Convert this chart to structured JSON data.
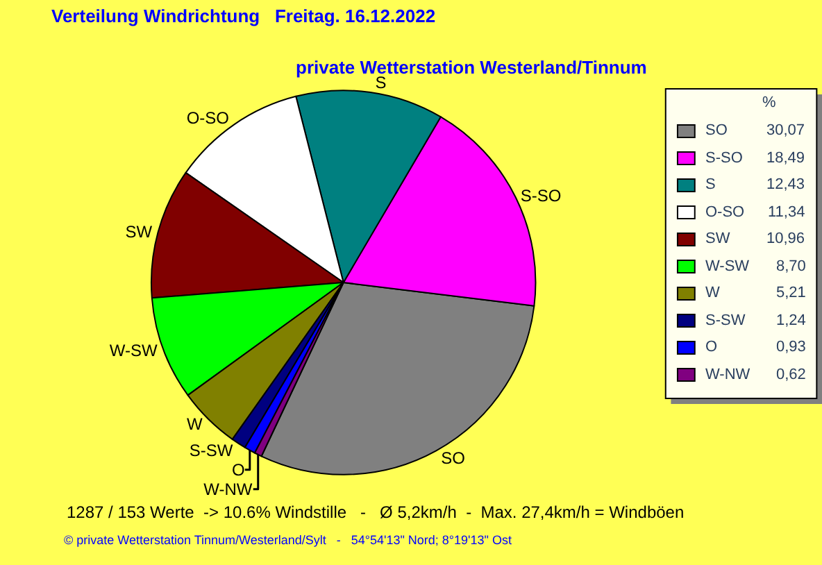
{
  "chart_data": {
    "type": "pie",
    "title": "Verteilung Windrichtung   Freitag. 16.12.2022",
    "subtitle": "private Wetterstation Westerland/Tinnum",
    "legend_title": "%",
    "legend": "right",
    "categories": [
      "SO",
      "S-SO",
      "S",
      "O-SO",
      "SW",
      "W-SW",
      "W",
      "S-SW",
      "O",
      "W-NW"
    ],
    "values": [
      30.07,
      18.49,
      12.43,
      11.34,
      10.96,
      8.7,
      5.21,
      1.24,
      0.93,
      0.62
    ],
    "value_labels": [
      "30,07",
      "18,49",
      "12,43",
      "11,34",
      "10,96",
      "8,70",
      "5,21",
      "1,24",
      "0,93",
      "0,62"
    ],
    "colors": [
      "#808080",
      "#ff00ff",
      "#008080",
      "#ffffff",
      "#800000",
      "#00ff00",
      "#808000",
      "#000080",
      "#0000ff",
      "#800080"
    ],
    "annotations": [
      "1287 / 153 Werte  -> 10.6% Windstille   -   Ø 5,2km/h  -  Max. 27,4km/h = Windböen",
      "© private Wetterstation Tinnum/Westerland/Sylt   -   54°54'13\" Nord; 8°19'13\" Ost"
    ]
  }
}
